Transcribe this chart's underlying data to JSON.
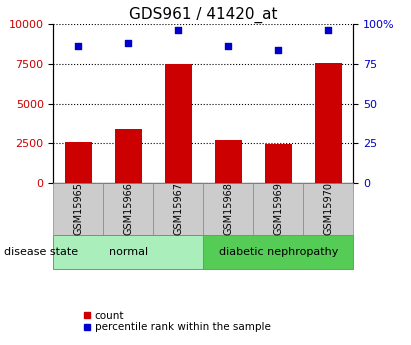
{
  "title": "GDS961 / 41420_at",
  "samples": [
    "GSM15965",
    "GSM15966",
    "GSM15967",
    "GSM15968",
    "GSM15969",
    "GSM15970"
  ],
  "counts": [
    2550,
    3400,
    7500,
    2700,
    2450,
    7550
  ],
  "percentile_ranks": [
    86,
    88,
    96,
    86,
    84,
    96
  ],
  "ylim_left": [
    0,
    10000
  ],
  "ylim_right": [
    0,
    100
  ],
  "yticks_left": [
    0,
    2500,
    5000,
    7500,
    10000
  ],
  "yticks_right": [
    0,
    25,
    50,
    75,
    100
  ],
  "ytick_labels_left": [
    "0",
    "2500",
    "5000",
    "7500",
    "10000"
  ],
  "ytick_labels_right": [
    "0",
    "25",
    "50",
    "75",
    "100%"
  ],
  "bar_color": "#cc0000",
  "dot_color": "#0000cc",
  "normal_color": "#aaeebb",
  "diabetic_color": "#55cc55",
  "sample_box_color": "#cccccc",
  "disease_label": "disease state",
  "normal_label": "normal",
  "diabetic_label": "diabetic nephropathy",
  "legend_count": "count",
  "legend_pct": "percentile rank within the sample",
  "title_fontsize": 11,
  "tick_label_fontsize": 8,
  "sample_fontsize": 7
}
